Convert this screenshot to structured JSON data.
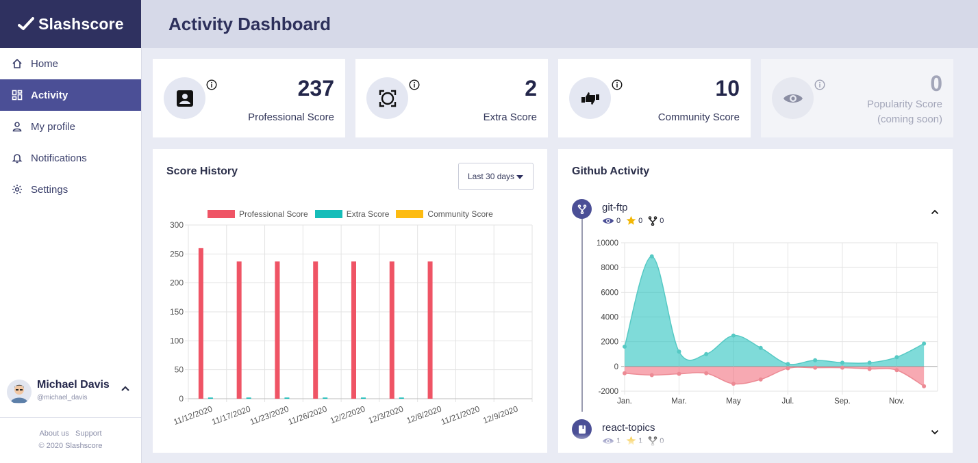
{
  "app": {
    "brand": "Slashscore"
  },
  "nav": {
    "items": [
      {
        "label": "Home",
        "icon": "home-icon"
      },
      {
        "label": "Activity",
        "icon": "dashboard-icon",
        "active": true
      },
      {
        "label": "My profile",
        "icon": "person-icon"
      },
      {
        "label": "Notifications",
        "icon": "bell-icon"
      },
      {
        "label": "Settings",
        "icon": "gear-icon"
      }
    ]
  },
  "user": {
    "name": "Michael Davis",
    "handle": "@michael_davis"
  },
  "footer": {
    "about": "About us",
    "support": "Support",
    "copyright": "© 2020 Slashscore"
  },
  "header": {
    "title": "Activity Dashboard"
  },
  "stats": [
    {
      "value": "237",
      "label": "Professional Score",
      "icon": "person-card-icon"
    },
    {
      "value": "2",
      "label": "Extra Score",
      "icon": "focus-frame-icon"
    },
    {
      "value": "10",
      "label": "Community Score",
      "icon": "thumbs-icon"
    },
    {
      "value": "0",
      "label": "Popularity Score",
      "note": "(coming soon)",
      "icon": "eye-icon"
    }
  ],
  "score_history": {
    "title": "Score History",
    "range": "Last 30 days"
  },
  "github": {
    "title": "Github Activity",
    "repos": [
      {
        "name": "git-ftp",
        "watchers": "0",
        "stars": "0",
        "forks": "0",
        "expanded": true
      },
      {
        "name": "react-topics",
        "watchers": "1",
        "stars": "1",
        "forks": "0",
        "expanded": false
      }
    ]
  },
  "colors": {
    "professional": "#ef5465",
    "extra": "#15bdb9",
    "community": "#fdbb11",
    "brand": "#2f3160",
    "accent": "#4b4f96"
  },
  "chart_data": [
    {
      "type": "bar",
      "categories": [
        "11/12/2020",
        "11/17/2020",
        "11/23/2020",
        "11/26/2020",
        "12/2/2020",
        "12/3/2020",
        "12/8/2020",
        "11/21/2020",
        "12/9/2020"
      ],
      "series": [
        {
          "name": "Professional Score",
          "values": [
            260,
            237,
            237,
            237,
            237,
            237,
            237,
            null,
            null
          ]
        },
        {
          "name": "Extra Score",
          "values": [
            2,
            2,
            2,
            2,
            2,
            2,
            null,
            null,
            null
          ]
        },
        {
          "name": "Community Score",
          "values": [
            null,
            null,
            null,
            null,
            null,
            null,
            null,
            null,
            null
          ]
        }
      ],
      "ylim": [
        0,
        300
      ],
      "yticks": [
        0,
        50,
        100,
        150,
        200,
        250,
        300
      ],
      "legend": "top",
      "grid": true
    },
    {
      "type": "area",
      "x": [
        0,
        1,
        2,
        3,
        4,
        5,
        6,
        7,
        8,
        9,
        10,
        11
      ],
      "xticklabels": [
        "Jan.",
        "Mar.",
        "May",
        "Jul.",
        "Sep.",
        "Nov."
      ],
      "series": [
        {
          "values": [
            1600,
            8900,
            1200,
            1000,
            2500,
            1500,
            200,
            500,
            300,
            300,
            750,
            1850
          ]
        },
        {
          "values": [
            -550,
            -700,
            -600,
            -550,
            -1400,
            -1050,
            -150,
            -100,
            -100,
            -200,
            -300,
            -1600
          ]
        }
      ],
      "ylim": [
        -2000,
        10000
      ],
      "yticks": [
        -2000,
        0,
        2000,
        4000,
        6000,
        8000,
        10000
      ],
      "grid": true
    }
  ]
}
